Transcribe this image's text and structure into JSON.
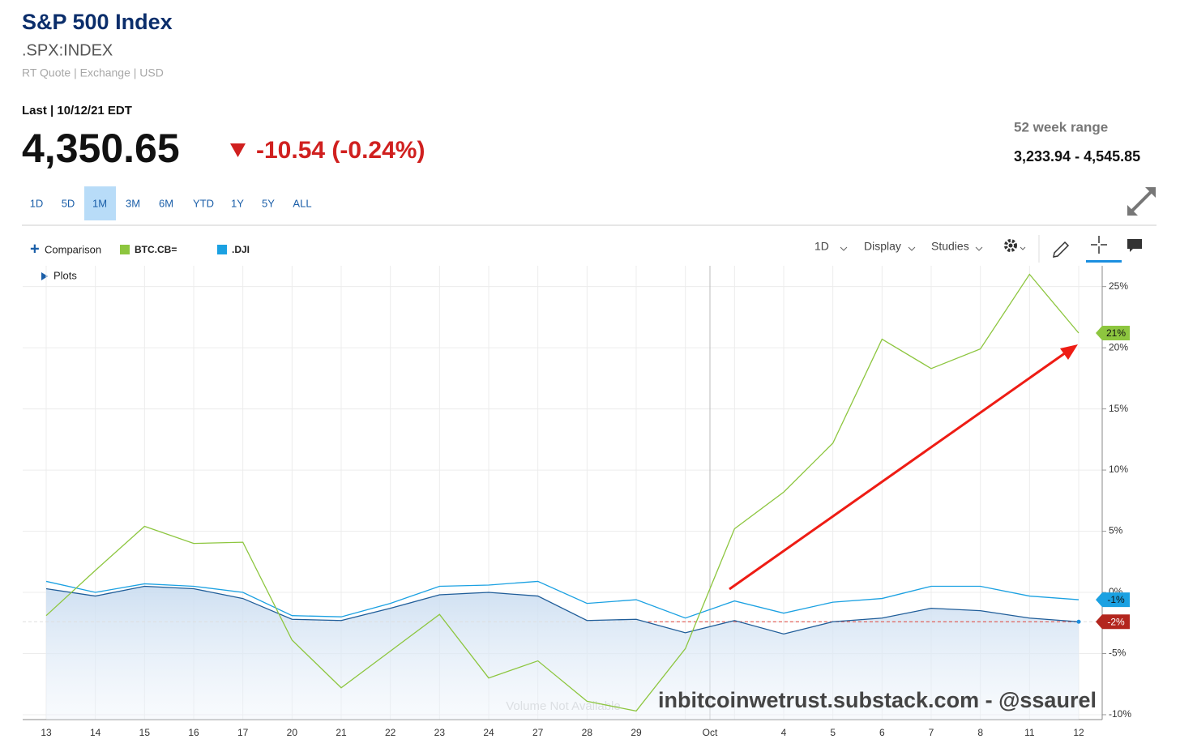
{
  "header": {
    "title": "S&P 500 Index",
    "symbol": ".SPX:INDEX",
    "quote_info": "RT Quote | Exchange | USD",
    "last_label": "Last | 10/12/21 EDT",
    "price": "4,350.65",
    "change": "-10.54 (-0.24%)",
    "range_label": "52 week range",
    "range_value": "3,233.94 - 4,545.85"
  },
  "periods": [
    "1D",
    "5D",
    "1M",
    "3M",
    "6M",
    "YTD",
    "1Y",
    "5Y",
    "ALL"
  ],
  "active_period": 2,
  "toolbar": {
    "comparison": "Comparison",
    "interval": "1D",
    "display": "Display",
    "studies": "Studies",
    "plots": "Plots"
  },
  "chart_data": {
    "type": "line",
    "categories": [
      "13",
      "14",
      "15",
      "16",
      "17",
      "20",
      "21",
      "22",
      "23",
      "24",
      "27",
      "28",
      "29",
      null,
      null,
      "4",
      "5",
      "6",
      "7",
      "8",
      "11",
      "12"
    ],
    "month_label": "Oct",
    "series": [
      {
        "name": "BTC.CB=",
        "color": "#8dc63f",
        "label_color": "#8dc63f",
        "values": [
          -1.9,
          1.8,
          5.4,
          4.0,
          4.1,
          -3.9,
          -7.8,
          -4.8,
          -1.8,
          -7.0,
          -5.6,
          -8.9,
          -9.7,
          -4.6,
          5.2,
          8.2,
          12.2,
          20.7,
          18.3,
          19.9,
          26.0,
          21.2
        ],
        "value_labels": [
          null,
          null,
          null,
          null,
          null,
          null,
          null,
          null,
          null,
          null,
          null,
          null,
          null,
          null,
          null,
          null,
          null,
          null,
          null,
          null,
          null,
          "21%"
        ]
      },
      {
        "name": ".DJI",
        "color": "#1ba1e2",
        "label_color": "#1ba1e2",
        "values": [
          0.9,
          0.0,
          0.7,
          0.5,
          0.0,
          -1.9,
          -2.0,
          -0.9,
          0.5,
          0.6,
          0.9,
          -0.9,
          -0.6,
          -2.1,
          -0.7,
          -1.7,
          -0.8,
          -0.5,
          0.5,
          0.5,
          -0.3,
          -0.6
        ],
        "value_labels": [
          null,
          null,
          null,
          null,
          null,
          null,
          null,
          null,
          null,
          null,
          null,
          null,
          null,
          null,
          null,
          null,
          null,
          null,
          null,
          null,
          null,
          "-1%"
        ]
      },
      {
        "color": "#1f5d99",
        "label_color": "#b3261e",
        "area": true,
        "values": [
          0.3,
          -0.3,
          0.5,
          0.3,
          -0.5,
          -2.2,
          -2.3,
          -1.3,
          -0.2,
          0.0,
          -0.3,
          -2.3,
          -2.2,
          -3.3,
          -2.3,
          -3.4,
          -2.4,
          -2.1,
          -1.3,
          -1.5,
          -2.1,
          -2.4
        ],
        "value_labels": [
          null,
          null,
          null,
          null,
          null,
          null,
          null,
          null,
          null,
          null,
          null,
          null,
          null,
          null,
          null,
          null,
          null,
          null,
          null,
          null,
          null,
          "-2%"
        ]
      }
    ],
    "ylim": [
      -10.4,
      26.7
    ],
    "yticks": [
      {
        "value": -10,
        "label": "-10%"
      },
      {
        "value": -5,
        "label": "-5%"
      },
      {
        "value": 0,
        "label": "0%"
      },
      {
        "value": 5,
        "label": "5%"
      },
      {
        "value": 10,
        "label": "10%"
      },
      {
        "value": 15,
        "label": "15%"
      },
      {
        "value": 20,
        "label": "20%"
      },
      {
        "value": 25,
        "label": "25%"
      }
    ],
    "grid": true,
    "volume_note": "Volume Not Available",
    "watermark": "inbitcoinwetrust.substack.com - @ssaurel"
  }
}
